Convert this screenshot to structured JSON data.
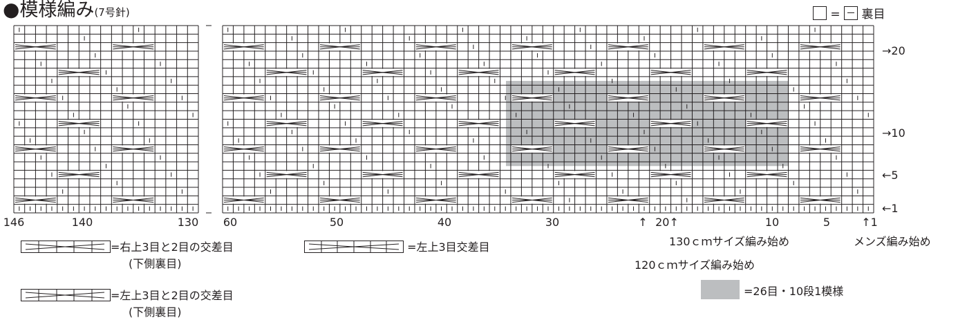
{
  "title": {
    "bullet": "●",
    "main": "模様編み",
    "sub": "(7号針)"
  },
  "legend_top": {
    "eq": "=",
    "label": "裏目"
  },
  "left_panel_col_labels": [
    "146",
    "140",
    "130"
  ],
  "right_panel_col_labels": [
    "60",
    "50",
    "40",
    "30",
    "20↑",
    "10",
    "5",
    "↑1"
  ],
  "row_labels": [
    "→20",
    "→10",
    "←5",
    "←1"
  ],
  "arrow_120": "↑",
  "start_labels": {
    "size130": "130ｃｍサイズ編み始め",
    "size120": "120ｃｍサイズ編み始め",
    "mens": "メンズ編み始め"
  },
  "symbol_keys": [
    {
      "text": "=右上3目と2目の交差目",
      "note": "(下側裏目)"
    },
    {
      "text": " =左上3目交差目",
      "note": ""
    },
    {
      "text": "=左上3目と2目の交差目",
      "note": "(下側裏目)"
    }
  ],
  "repeat_key": "=26目・10段1模様",
  "colors": {
    "line": "#231f20",
    "repeat_fill": "#bcbec0"
  }
}
